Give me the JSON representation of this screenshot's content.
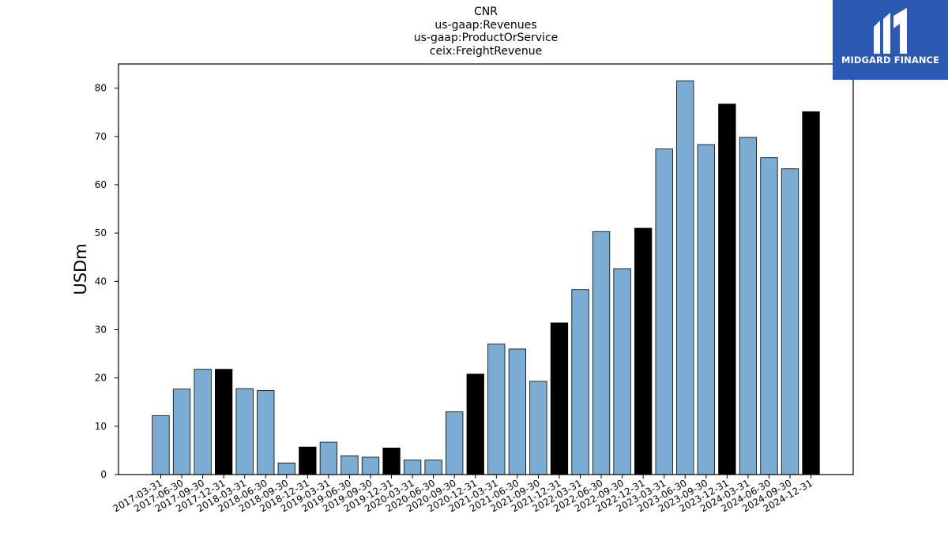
{
  "chart_data": {
    "type": "bar",
    "title_lines": [
      "CNR",
      "us-gaap:Revenues",
      "us-gaap:ProductOrService",
      "ceix:FreightRevenue"
    ],
    "ylabel": "USDm",
    "xlabel": "",
    "ylim": [
      0,
      85
    ],
    "yticks": [
      0,
      10,
      20,
      30,
      40,
      50,
      60,
      70,
      80
    ],
    "grid": false,
    "categories": [
      "2017-03-31",
      "2017-06-30",
      "2017-09-30",
      "2017-12-31",
      "2018-03-31",
      "2018-06-30",
      "2018-09-30",
      "2018-12-31",
      "2019-03-31",
      "2019-06-30",
      "2019-09-30",
      "2019-12-31",
      "2020-03-31",
      "2020-06-30",
      "2020-09-30",
      "2020-12-31",
      "2021-03-31",
      "2021-06-30",
      "2021-09-30",
      "2021-12-31",
      "2022-03-31",
      "2022-06-30",
      "2022-09-30",
      "2022-12-31",
      "2023-03-31",
      "2023-06-30",
      "2023-09-30",
      "2023-12-31",
      "2024-03-31",
      "2024-06-30",
      "2024-09-30",
      "2024-12-31"
    ],
    "values": [
      12.2,
      17.7,
      21.8,
      21.8,
      17.8,
      17.4,
      2.4,
      5.7,
      6.7,
      3.9,
      3.6,
      5.5,
      3.0,
      3.0,
      13.0,
      20.8,
      27.0,
      26.0,
      19.3,
      31.4,
      38.3,
      50.3,
      42.6,
      51.0,
      67.4,
      81.5,
      68.3,
      76.7,
      69.8,
      65.6,
      63.3,
      75.1
    ],
    "colors": {
      "quarter": "#7bacd2",
      "year_end": "#000000",
      "edge": "#000000"
    }
  },
  "logo": {
    "text": "MIDGARD FINANCE",
    "background": "#2b58b0"
  }
}
